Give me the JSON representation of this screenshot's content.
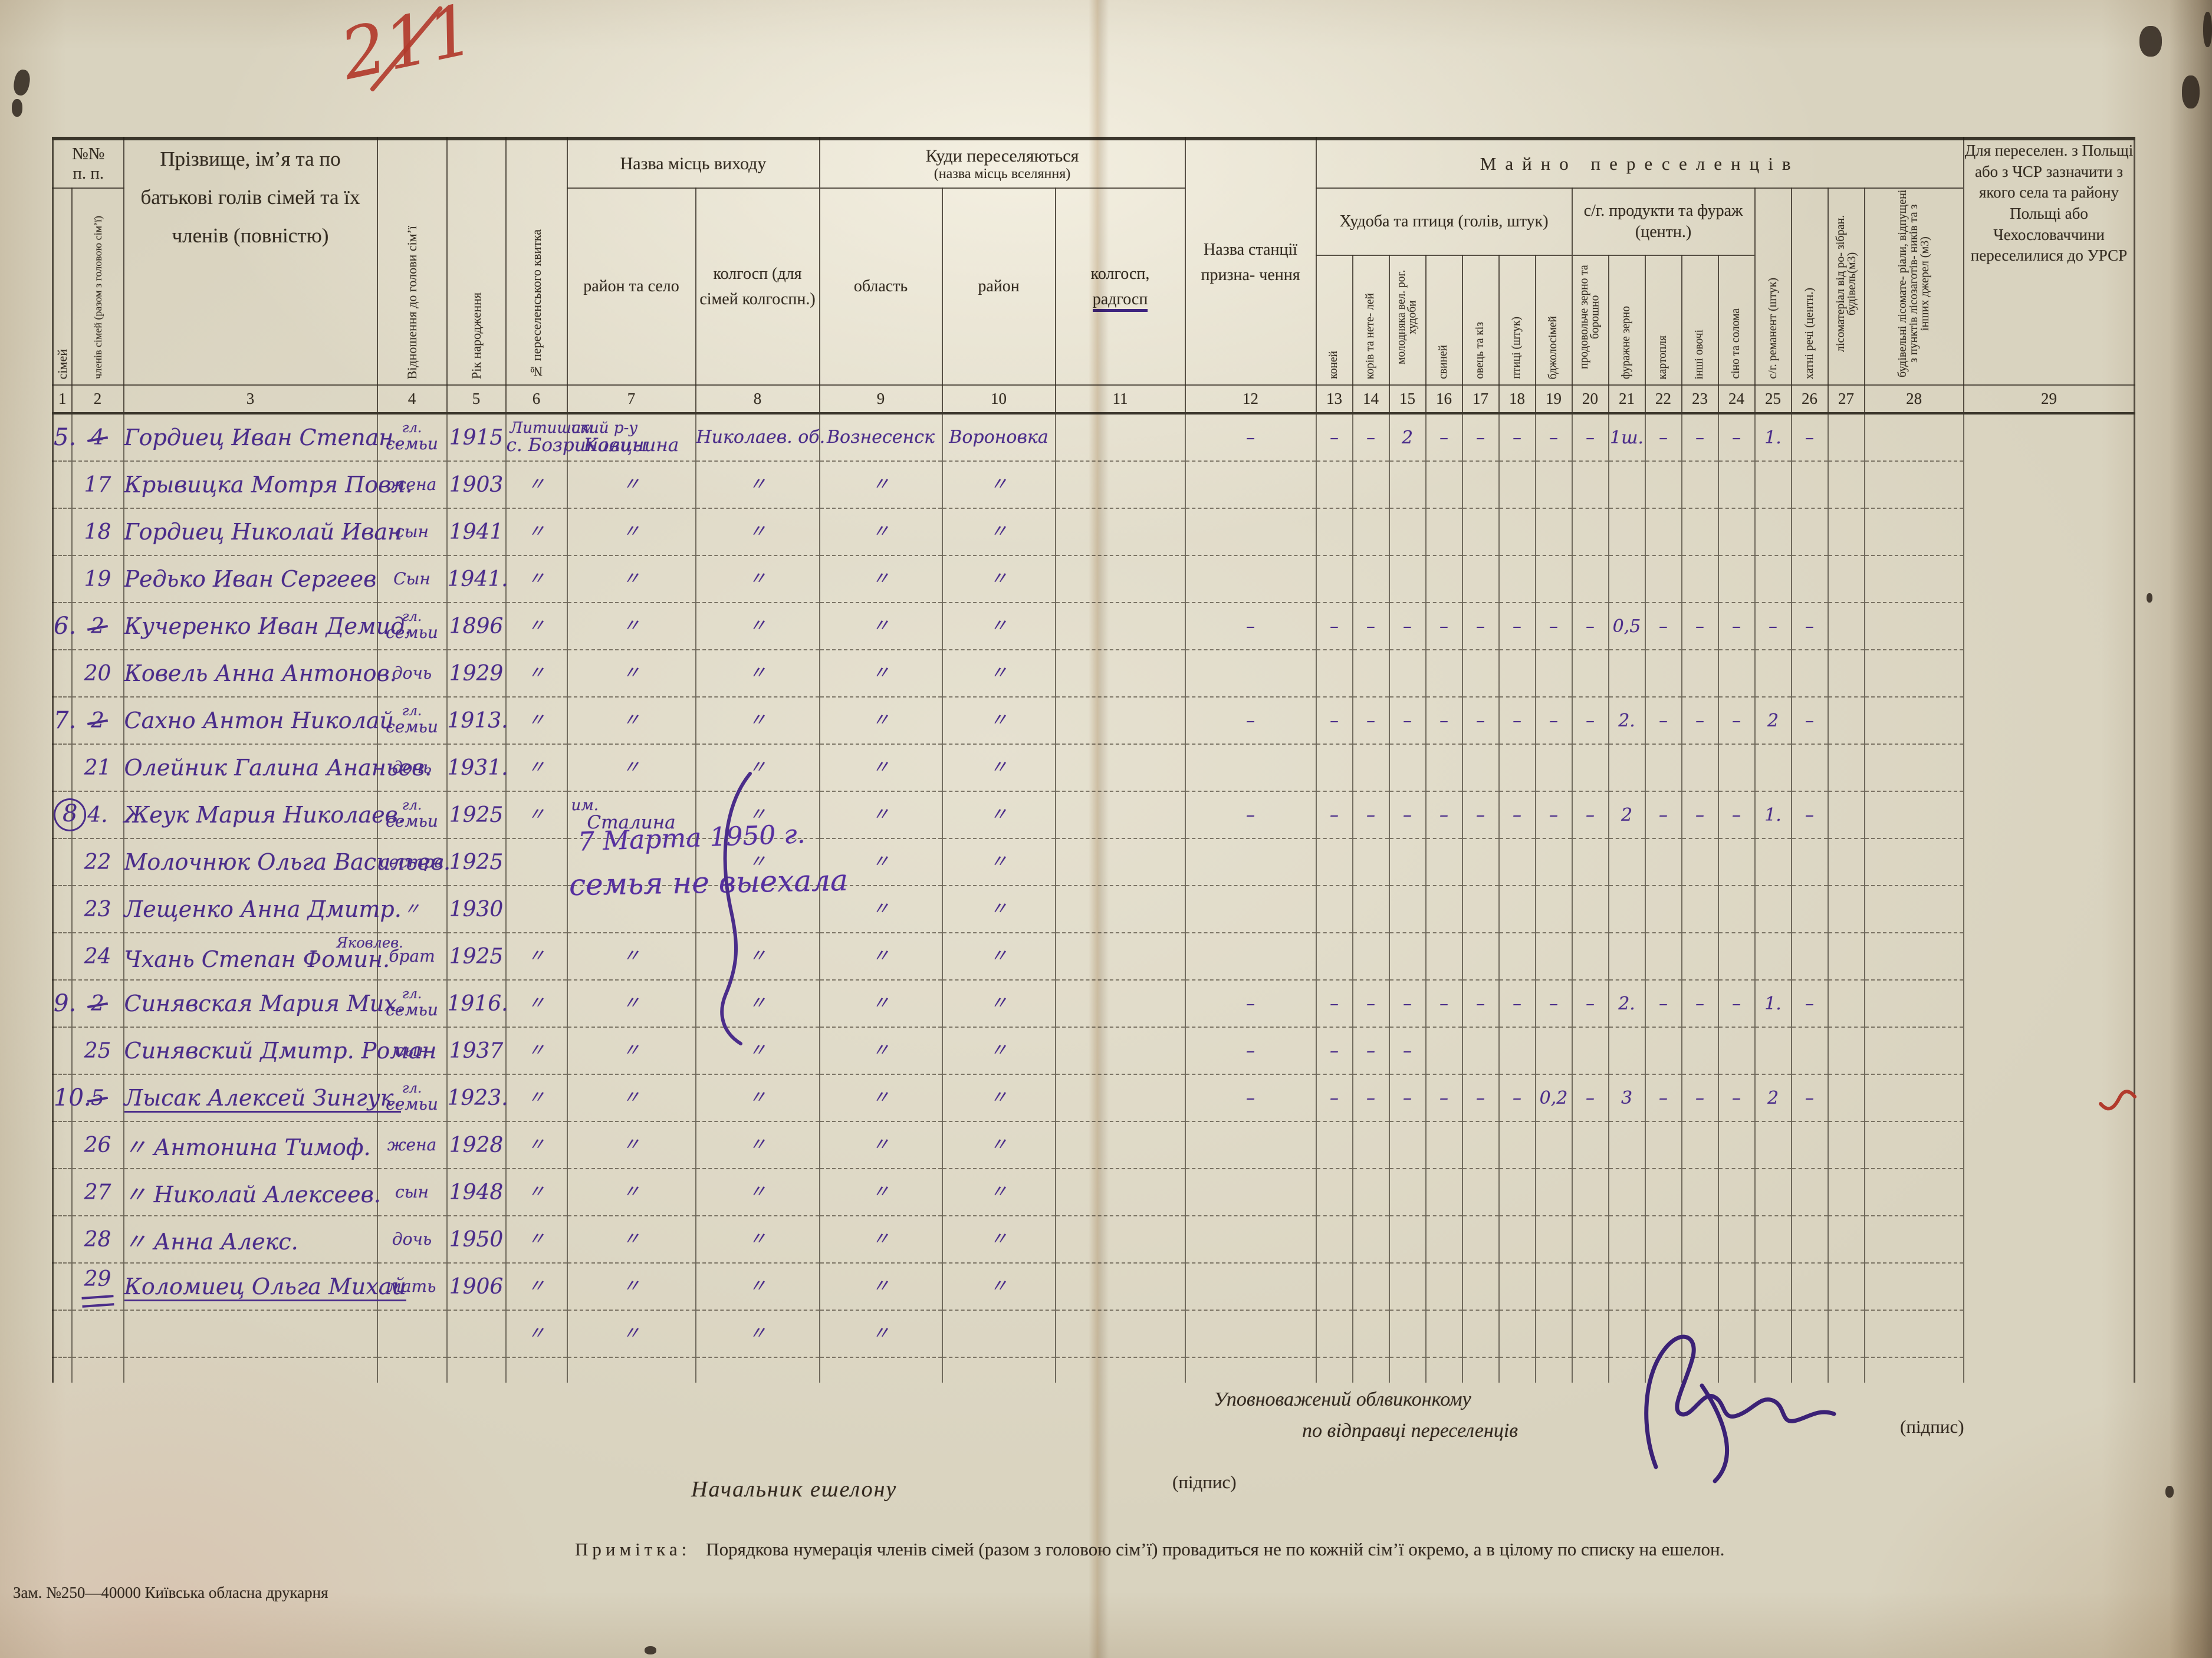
{
  "document": {
    "red_mark": "211",
    "colors": {
      "ink": "#4a2c8a",
      "red_pencil": "#b23a2c",
      "paper": "#d9d3bf"
    }
  },
  "table": {
    "header": {
      "nn1": "№№",
      "nn2": "п. п.",
      "c1": "сімей",
      "c2": "членів сімей (разом з головою сім’ї)",
      "c3": "Прізвище, ім’я та по батькові голів сімей та їх членів (повністю)",
      "c4": "Відношення до голови сім’ї",
      "c5": "Рік народження",
      "c6": "№ переселенського квитка",
      "g_origin": "Назва місць виходу",
      "c7": "район та село",
      "c8": "колгосп (для сімей колгоспн.)",
      "g_dest1": "Куди переселяються",
      "g_dest2": "(назва місць вселяння)",
      "c9": "область",
      "c10": "район",
      "c11a": "колгосп,",
      "c11b": "радгосп",
      "c12": "Назва станції призна- чення",
      "g_property": "Майно переселенців",
      "g_livestock": "Худоба та птиця (голів, штук)",
      "g_products": "с/г. продукти та фураж (центн.)",
      "c13": "коней",
      "c14": "корів та нете- лей",
      "c15": "молодняка вел. рог. худоби",
      "c16": "свиней",
      "c17": "овець та кіз",
      "c18": "птиці (штук)",
      "c19": "бджолосімей",
      "c20": "продовольче зерно та борошно",
      "c21": "фуражне зерно",
      "c22": "картопля",
      "c23": "інші овочі",
      "c24": "сіно та солома",
      "c25": "с/г. реманент (штук)",
      "c26": "хатні речі (центн.)",
      "c27": "лісоматеріал від ро- зібран. будівель(м3)",
      "c28": "будівельні лісомате- ріали, відпущені з пунктів лісозаготів- ників та з інших джерел (м3)",
      "c29": "Для переселен. з Польщі або з ЧСР зазначити з якого села та району Польщі або Чехословаччини переселилися до УРСР",
      "nums": [
        "1",
        "2",
        "3",
        "4",
        "5",
        "6",
        "7",
        "8",
        "9",
        "10",
        "11",
        "12",
        "13",
        "14",
        "15",
        "16",
        "17",
        "18",
        "19",
        "20",
        "21",
        "22",
        "23",
        "24",
        "25",
        "26",
        "27",
        "28",
        "29"
      ]
    },
    "rows": [
      {
        "fam": "5.",
        "num": "4",
        "num_struck": true,
        "name": "Гордиец Иван Степан.",
        "rel_top": "гл.",
        "rel": "семьи",
        "year": "1915",
        "c7a": "Литишский р-у",
        "c7b": "с. Бозриновцы",
        "c8a": "им.",
        "c8b": "Калинина",
        "c9": "Николаев. об.",
        "c10": "Вознесенск",
        "c11": "Вороновка",
        "vals": [
          "–",
          "–",
          "–",
          "2",
          "–",
          "–",
          "–",
          "–",
          "–",
          "1ш.",
          "–",
          "–",
          "–",
          "1.",
          "–"
        ]
      },
      {
        "num": "17",
        "name": "Крывицка Мотря Повл.",
        "rel": "жена",
        "year": "1903",
        "c7a": "〃",
        "c8a": "〃",
        "c9": "〃",
        "c10": "〃",
        "c11": "〃"
      },
      {
        "num": "18",
        "name": "Гордиец Николай Иван",
        "rel": "сын",
        "year": "1941",
        "c7a": "〃",
        "c8a": "〃",
        "c9": "〃",
        "c10": "〃",
        "c11": "〃"
      },
      {
        "num": "19",
        "name": "Редько Иван Сергеев",
        "rel": "Сын",
        "year": "1941.",
        "c7a": "〃",
        "c8a": "〃",
        "c9": "〃",
        "c10": "〃",
        "c11": "〃"
      },
      {
        "fam": "6.",
        "num": "2",
        "num_struck": true,
        "name": "Кучеренко Иван Демид.",
        "rel_top": "гл.",
        "rel": "семьи",
        "year": "1896",
        "c7a": "〃",
        "c8a": "〃",
        "c9": "〃",
        "c10": "〃",
        "c11": "〃",
        "vals": [
          "–",
          "–",
          "–",
          "–",
          "–",
          "–",
          "–",
          "–",
          "–",
          "0,5",
          "–",
          "–",
          "–",
          "–",
          "–"
        ]
      },
      {
        "num": "20",
        "name": "Ковель Анна Антонов.",
        "rel": "дочь",
        "year": "1929",
        "c7a": "〃",
        "c8a": "〃",
        "c9": "〃",
        "c10": "〃",
        "c11": "〃"
      },
      {
        "fam": "7.",
        "num": "2",
        "num_struck": true,
        "name": "Сахно Антон Николай",
        "rel_top": "гл.",
        "rel": "семьи",
        "year": "1913.",
        "c7a": "〃",
        "c8a": "〃",
        "c9": "〃",
        "c10": "〃",
        "c11": "〃",
        "vals": [
          "–",
          "–",
          "–",
          "–",
          "–",
          "–",
          "–",
          "–",
          "–",
          "2.",
          "–",
          "–",
          "–",
          "2",
          "–"
        ]
      },
      {
        "num": "21",
        "name": "Олейник Галина Ананьев.",
        "rel": "дочь",
        "year": "1931.",
        "c7a": "〃",
        "c8a": "〃",
        "c9": "〃",
        "c10": "〃",
        "c11": "〃"
      },
      {
        "fam": "8",
        "fam_circled": true,
        "num": "4.",
        "name": "Жеук Мария Николаев.",
        "rel_top": "гл.",
        "rel": "семьи",
        "year": "1925",
        "c7a": "〃",
        "c8a": "им.",
        "c8b": "Сталина",
        "c9": "〃",
        "c10": "〃",
        "c11": "〃",
        "vals": [
          "–",
          "–",
          "–",
          "–",
          "–",
          "–",
          "–",
          "–",
          "–",
          "2",
          "–",
          "–",
          "–",
          "1.",
          "–"
        ]
      },
      {
        "num": "22",
        "name": "Молочнюк Ольга Васильев.",
        "rel": "сестра",
        "year": "1925",
        "c9": "〃",
        "c10": "〃",
        "c11": "〃"
      },
      {
        "num": "23",
        "name": "Лещенко Анна Дмитр.",
        "rel": "〃",
        "year": "1930",
        "c10": "〃",
        "c11": "〃"
      },
      {
        "num": "24",
        "name": "Чхань Степан Фомин.",
        "name_sup": "Яковлев.",
        "rel": "брат",
        "year": "1925",
        "c7a": "〃",
        "c8a": "〃",
        "c9": "〃",
        "c10": "〃",
        "c11": "〃"
      },
      {
        "fam": "9.",
        "num": "2",
        "num_struck": true,
        "name": "Синявская Мария Мих.",
        "rel_top": "гл.",
        "rel": "семьи",
        "year": "1916.",
        "c7a": "〃",
        "c8a": "〃",
        "c9": "〃",
        "c10": "〃",
        "c11": "〃",
        "vals": [
          "–",
          "–",
          "–",
          "–",
          "–",
          "–",
          "–",
          "–",
          "–",
          "2.",
          "–",
          "–",
          "–",
          "1.",
          "–"
        ]
      },
      {
        "num": "25",
        "name": "Синявский Дмитр. Роман",
        "rel": "сын",
        "year": "1937",
        "c7a": "〃",
        "c8a": "〃",
        "c9": "〃",
        "c10": "〃",
        "c11": "〃",
        "vals": [
          "–",
          "–",
          "–",
          "–",
          "",
          "",
          "",
          "",
          "",
          "",
          "",
          "",
          "",
          "",
          ""
        ]
      },
      {
        "fam": "10.",
        "num": "5",
        "num_struck": true,
        "name": "Лысак Алексей Зингук.",
        "name_underline": true,
        "rel_top": "гл.",
        "rel": "семьи",
        "year": "1923.",
        "c7a": "〃",
        "c8a": "〃",
        "c9": "〃",
        "c10": "〃",
        "c11": "〃",
        "vals": [
          "–",
          "–",
          "–",
          "–",
          "–",
          "–",
          "–",
          "0,2",
          "–",
          "3",
          "–",
          "–",
          "–",
          "2",
          "–"
        ]
      },
      {
        "num": "26",
        "name": "〃  Антонина Тимоф.",
        "rel": "жена",
        "year": "1928",
        "c7a": "〃",
        "c8a": "〃",
        "c9": "〃",
        "c10": "〃",
        "c11": "〃"
      },
      {
        "num": "27",
        "name": "〃  Николай Алексеев.",
        "rel": "сын",
        "year": "1948",
        "c7a": "〃",
        "c8a": "〃",
        "c9": "〃",
        "c10": "〃",
        "c11": "〃"
      },
      {
        "num": "28",
        "name": "〃  Анна Алекс.",
        "rel": "дочь",
        "year": "1950",
        "c7a": "〃",
        "c8a": "〃",
        "c9": "〃",
        "c10": "〃",
        "c11": "〃"
      },
      {
        "num": "29",
        "num_dd": true,
        "name": "Коломиец Ольга Михай",
        "name_underline": true,
        "rel": "мать",
        "year": "1906",
        "c7a": "〃",
        "c8a": "〃",
        "c9": "〃",
        "c10": "〃",
        "c11": "〃"
      },
      {
        "c7a": "〃",
        "c8a": "〃",
        "c9": "〃",
        "c10": "〃"
      }
    ]
  },
  "annotations": {
    "date_note": "7 Марта 1950 г.",
    "family_note": "семья не выехала"
  },
  "footer": {
    "commissioner_line1": "Уповноважений облвиконкому",
    "commissioner_line2": "по відправці переселенців",
    "signature_label": "(підпис)",
    "echelon_chief": "Начальник ешелону",
    "signature_label2": "(підпис)",
    "note_label": "Примітка:",
    "note_text": "Порядкова нумерація членів сімей (разом з головою сім’ї) провадиться не по кожній сім’ї окремо, а в цілому по списку на ешелон.",
    "print_info": "Зам. №250—40000 Київська обласна друкарня"
  }
}
